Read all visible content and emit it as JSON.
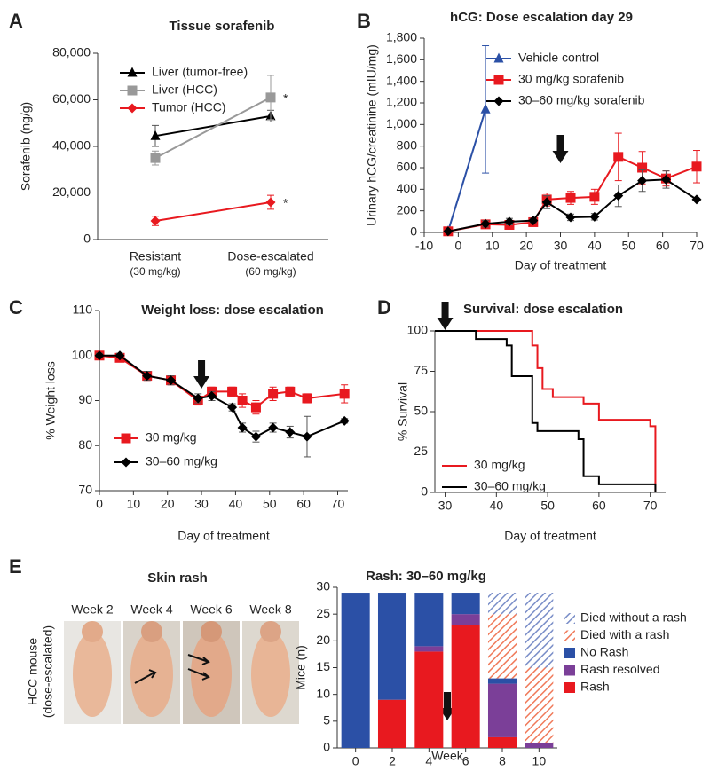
{
  "chart_data": [
    {
      "panel": "A",
      "type": "line",
      "title": "Tissue sorafenib",
      "y_label": "Sorafenib (ng/g)",
      "categories": [
        "Resistant",
        "Dose-escalated"
      ],
      "category_notes": [
        "(30 mg/kg)",
        "(60 mg/kg)"
      ],
      "ylim": [
        0,
        80000
      ],
      "yticks": [
        0,
        {
          "value": 20000,
          "label": "20,000"
        },
        {
          "value": 40000,
          "label": "40,000"
        },
        {
          "value": 60000,
          "label": "60,000"
        },
        {
          "value": 80000,
          "label": "80,000"
        }
      ],
      "legend": "upper left",
      "series": [
        {
          "name": "Liver (tumor-free)",
          "color": "#000000",
          "marker": "triangle",
          "values": [
            44500,
            53000
          ],
          "errors": [
            4500,
            2500
          ],
          "flags": [
            null,
            null
          ]
        },
        {
          "name": "Liver (HCC)",
          "color": "#999999",
          "marker": "square",
          "values": [
            35000,
            61000
          ],
          "errors": [
            3000,
            9500
          ],
          "flags": [
            null,
            "*"
          ]
        },
        {
          "name": "Tumor (HCC)",
          "color": "#e8191f",
          "marker": "diamond",
          "values": [
            8000,
            16000
          ],
          "errors": [
            2000,
            3000
          ],
          "flags": [
            null,
            "*"
          ]
        }
      ]
    },
    {
      "panel": "B",
      "type": "line",
      "title": "hCG: Dose escalation day 29",
      "y_label": "Urinary hCG/creatinine (mIU/mg)",
      "x_label": "Day of treatment",
      "xlim": [
        -10,
        70
      ],
      "xticks": [
        -10,
        0,
        10,
        20,
        30,
        40,
        50,
        60,
        70
      ],
      "ylim": [
        0,
        1800
      ],
      "yticks": [
        0,
        200,
        400,
        600,
        800,
        {
          "value": 1000,
          "label": "1,000"
        },
        {
          "value": 1200,
          "label": "1,200"
        },
        {
          "value": 1400,
          "label": "1,400"
        },
        {
          "value": 1600,
          "label": "1,600"
        },
        {
          "value": 1800,
          "label": "1,800"
        }
      ],
      "legend": "upper right",
      "arrow_x": 30,
      "series": [
        {
          "name": "Vehicle control",
          "color": "#2b50a6",
          "marker": "triangle",
          "x": [
            -3,
            8
          ],
          "values": [
            10,
            1140
          ],
          "errors": [
            10,
            590
          ]
        },
        {
          "name": "30 mg/kg sorafenib",
          "color": "#e8191f",
          "marker": "square",
          "x": [
            -3,
            8,
            15,
            22,
            26,
            33,
            40,
            47,
            54,
            61,
            70
          ],
          "values": [
            10,
            75,
            70,
            95,
            305,
            320,
            330,
            700,
            600,
            500,
            610
          ],
          "errors": [
            10,
            20,
            20,
            20,
            60,
            60,
            70,
            220,
            150,
            70,
            150
          ]
        },
        {
          "name": "30–60 mg/kg sorafenib",
          "color": "#000000",
          "marker": "diamond",
          "x": [
            -3,
            8,
            15,
            22,
            26,
            33,
            40,
            47,
            54,
            61,
            70
          ],
          "values": [
            10,
            80,
            100,
            110,
            280,
            140,
            145,
            340,
            480,
            490,
            305
          ],
          "errors": [
            10,
            30,
            30,
            20,
            60,
            30,
            30,
            100,
            100,
            80,
            null
          ]
        }
      ]
    },
    {
      "panel": "C",
      "type": "line",
      "title": "Weight loss: dose escalation",
      "y_label": "% Weight loss",
      "x_label": "Day of treatment",
      "xlim": [
        0,
        73
      ],
      "xticks": [
        0,
        10,
        20,
        30,
        40,
        50,
        60,
        70
      ],
      "ylim": [
        70,
        110
      ],
      "yticks": [
        70,
        80,
        90,
        100,
        110
      ],
      "legend": "lower left",
      "arrow_x": 30,
      "series": [
        {
          "name": "30 mg/kg",
          "color": "#e8191f",
          "marker": "square",
          "x": [
            0,
            6,
            14,
            21,
            29,
            33,
            39,
            42,
            46,
            51,
            56,
            61,
            72
          ],
          "values": [
            100,
            99.5,
            95.5,
            94.5,
            90,
            92,
            92,
            90,
            88.5,
            91.5,
            92,
            90.5,
            91.5
          ],
          "errors": [
            0.5,
            0.5,
            1,
            1,
            1,
            1,
            1,
            1.5,
            1.5,
            1.5,
            1,
            1,
            2
          ]
        },
        {
          "name": "30–60 mg/kg",
          "color": "#000000",
          "marker": "diamond",
          "x": [
            0,
            6,
            14,
            21,
            29,
            33,
            39,
            42,
            46,
            51,
            56,
            61,
            72
          ],
          "values": [
            100,
            100,
            95.5,
            94.5,
            90.5,
            91,
            88.5,
            84,
            82,
            84,
            83,
            82,
            85.5
          ],
          "errors": [
            0.5,
            0.5,
            1,
            1,
            1,
            1,
            0.8,
            1,
            1.2,
            1,
            1.3,
            4.5,
            0.5
          ]
        }
      ]
    },
    {
      "panel": "D",
      "type": "step",
      "title": "Survival: dose escalation",
      "y_label": "% Survival",
      "x_label": "Day of treatment",
      "xlim": [
        28,
        73
      ],
      "xticks": [
        30,
        40,
        50,
        60,
        70
      ],
      "ylim": [
        0,
        100
      ],
      "yticks": [
        0,
        25,
        50,
        75,
        100
      ],
      "legend": "lower left",
      "arrow_x": 30,
      "series": [
        {
          "name": "30 mg/kg",
          "color": "#e8191f",
          "x": [
            28,
            47,
            48,
            49,
            51,
            57,
            60,
            70,
            71
          ],
          "values": [
            100,
            91,
            77,
            64,
            59,
            55,
            45,
            41,
            0
          ]
        },
        {
          "name": "30–60 mg/kg",
          "color": "#000000",
          "x": [
            28,
            36,
            42,
            43,
            47,
            48,
            56,
            57,
            60,
            71
          ],
          "values": [
            100,
            95,
            91,
            72,
            43,
            38,
            33,
            10,
            5,
            0
          ]
        }
      ]
    },
    {
      "panel": "E",
      "type": "stacked_bar",
      "title": "Rash: 30–60 mg/kg",
      "y_label": "Mice (n)",
      "x_label": "Week",
      "x": [
        0,
        2,
        4,
        6,
        8,
        10
      ],
      "xlim": [
        -1,
        11
      ],
      "xticks": [
        0,
        2,
        4,
        6,
        8,
        10
      ],
      "ylim": [
        0,
        30
      ],
      "yticks": [
        0,
        5,
        10,
        15,
        20,
        25,
        30
      ],
      "legend": "outside right",
      "arrow_x": 5,
      "series": [
        {
          "name": "Rash",
          "color": "#e8191f",
          "hatch": false,
          "values": [
            0,
            9,
            18,
            23,
            2,
            0
          ]
        },
        {
          "name": "Rash resolved",
          "color": "#7b3f98",
          "hatch": false,
          "values": [
            0,
            0,
            1,
            2,
            10,
            1
          ]
        },
        {
          "name": "No Rash",
          "color": "#2b50a6",
          "hatch": false,
          "values": [
            29,
            20,
            10,
            4,
            1,
            0
          ]
        },
        {
          "name": "Died with a rash",
          "color": "#f07a5a",
          "hatch": true,
          "values": [
            0,
            0,
            0,
            0,
            12,
            14
          ]
        },
        {
          "name": "Died without a rash",
          "color": "#7a8ec8",
          "hatch": true,
          "values": [
            0,
            0,
            0,
            0,
            4,
            14
          ]
        }
      ]
    }
  ],
  "photo_panel": {
    "letter": "E",
    "title": "Skin rash",
    "weeks": [
      "Week 2",
      "Week 4",
      "Week 6",
      "Week 8"
    ],
    "y_label_lines": [
      "HCC mouse",
      "(dose-escalated)"
    ]
  }
}
